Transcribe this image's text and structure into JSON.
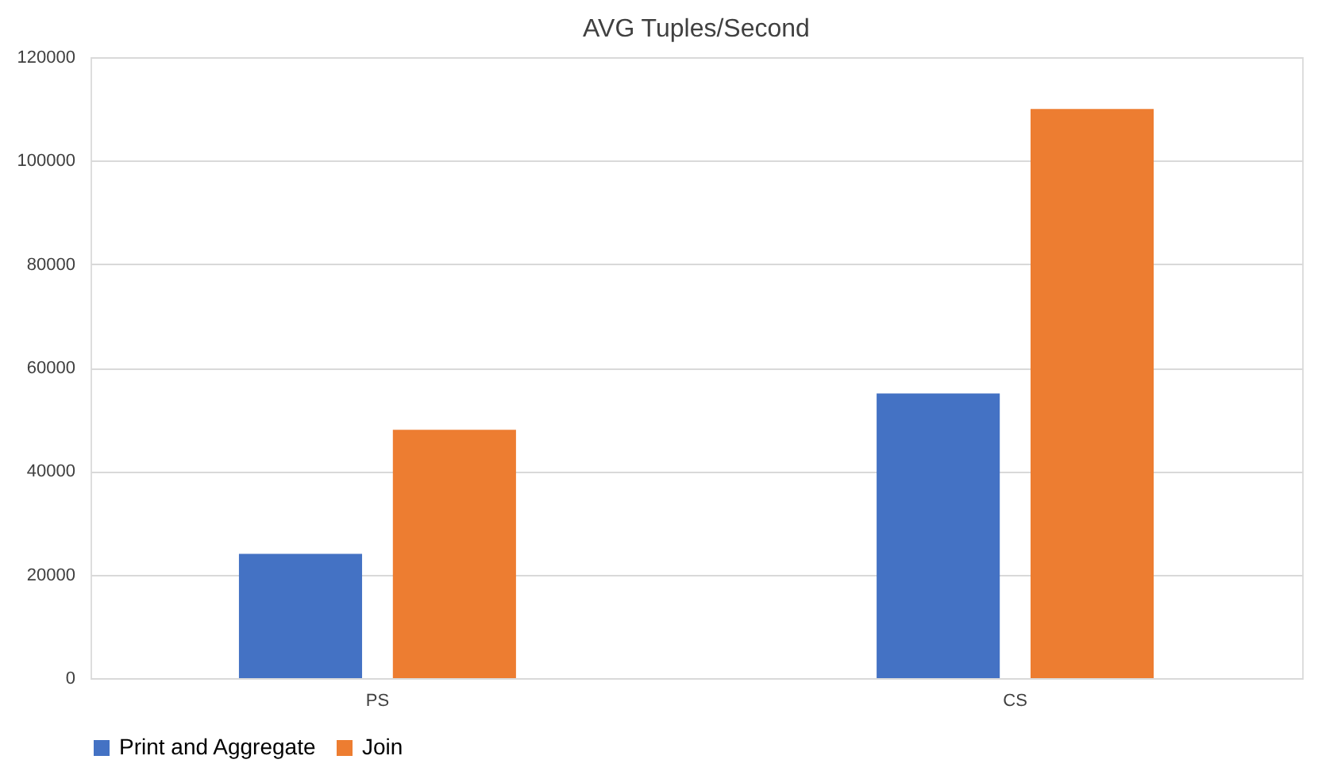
{
  "chart_data": {
    "type": "bar",
    "title": "AVG Tuples/Second",
    "categories": [
      "PS",
      "CS"
    ],
    "series": [
      {
        "name": "Print and Aggregate",
        "color": "#4472c4",
        "values": [
          24000,
          55000
        ]
      },
      {
        "name": "Join",
        "color": "#ed7d31",
        "values": [
          48000,
          110000
        ]
      }
    ],
    "ylim": [
      0,
      120000
    ],
    "yticks": [
      0,
      20000,
      40000,
      60000,
      80000,
      100000,
      120000
    ],
    "grid": "y",
    "legend": "bottom"
  }
}
